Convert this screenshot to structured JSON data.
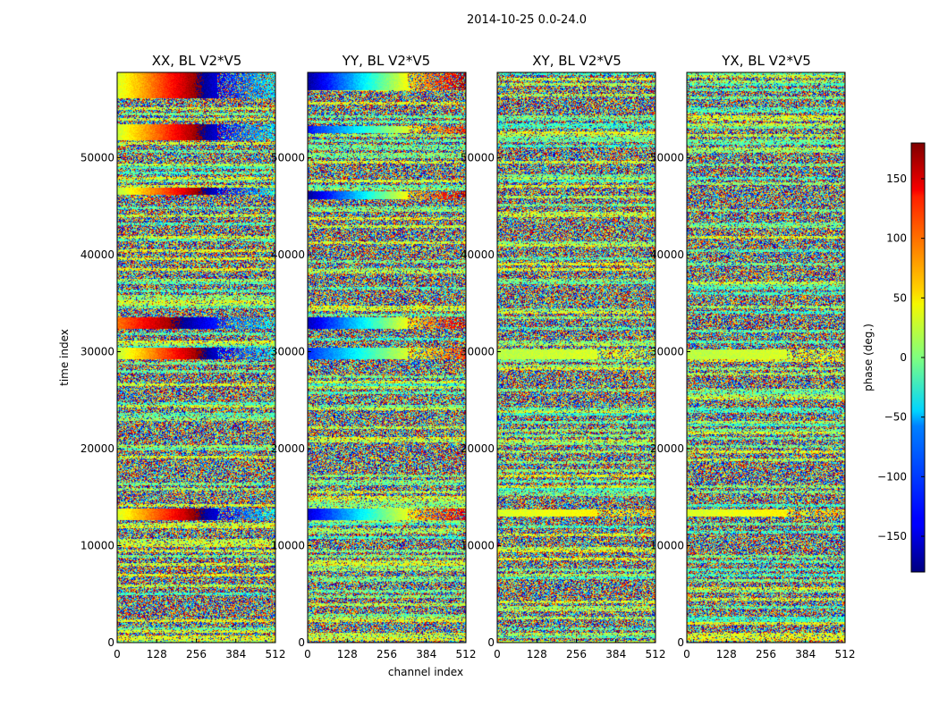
{
  "chart_data": {
    "type": "heatmap",
    "suptitle": "2014-10-25 0.0-24.0",
    "xlabel": "channel index",
    "ylabel": "time index",
    "xlim": [
      0,
      512
    ],
    "ylim": [
      0,
      58800
    ],
    "xticks": [
      0,
      128,
      256,
      384,
      512
    ],
    "yticks": [
      0,
      10000,
      20000,
      30000,
      40000,
      50000
    ],
    "colormap": "jet",
    "colorbar": {
      "label": "phase (deg.)",
      "range": [
        -180,
        180
      ],
      "ticks": [
        -150,
        -100,
        -50,
        0,
        50,
        100,
        150
      ]
    },
    "panels": [
      {
        "title": "XX, BL V2*V5",
        "coherent_bands": [
          [
            12700,
            13900,
            30,
            320
          ],
          [
            29300,
            30500,
            20,
            320
          ],
          [
            32400,
            33600,
            95,
            320
          ],
          [
            46200,
            47000,
            18,
            320
          ],
          [
            51800,
            53500,
            25,
            320
          ],
          [
            56200,
            58800,
            30,
            320
          ]
        ]
      },
      {
        "title": "YY, BL V2*V5",
        "coherent_bands": [
          [
            12700,
            13900,
            -150,
            150
          ],
          [
            29300,
            30500,
            -120,
            120
          ],
          [
            32400,
            33600,
            -160,
            160
          ],
          [
            45800,
            46600,
            -170,
            170
          ],
          [
            52600,
            53300,
            -130,
            130
          ],
          [
            57000,
            58800,
            -170,
            170
          ]
        ]
      },
      {
        "title": "XY, BL V2*V5",
        "coherent_bands": [
          [
            13000,
            13800,
            30,
            60
          ],
          [
            29300,
            30300,
            20,
            40
          ]
        ]
      },
      {
        "title": "YX, BL V2*V5",
        "coherent_bands": [
          [
            13000,
            13800,
            30,
            60
          ],
          [
            29300,
            30300,
            20,
            40
          ]
        ]
      }
    ],
    "grid": false
  },
  "colors": {
    "background": "#ffffff",
    "axis": "#000000",
    "jet_low": "#00007f",
    "jet_mid": "#7fff7f",
    "jet_high": "#7f0000"
  }
}
